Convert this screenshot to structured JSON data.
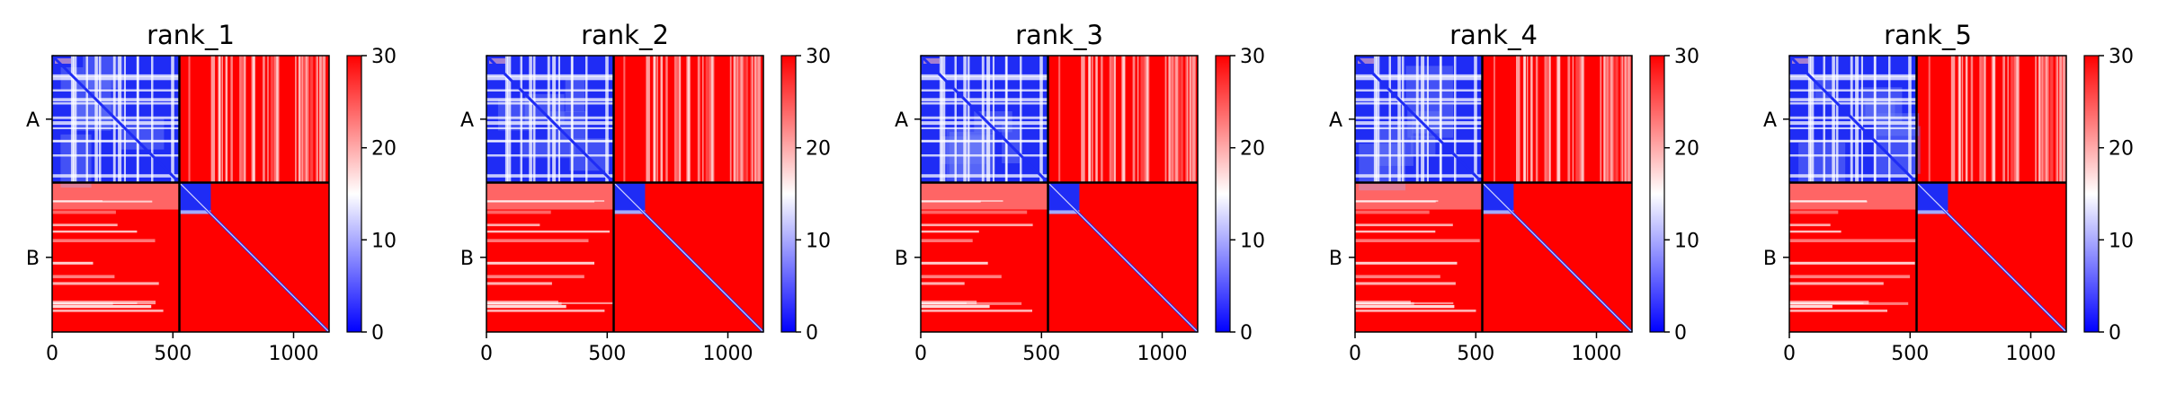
{
  "chart_data": {
    "type": "heatmap",
    "colorscale": {
      "min": 0,
      "mid": 15,
      "max": 30,
      "colors": [
        "#0000ff",
        "#ffffff",
        "#ff0000"
      ]
    },
    "colorbar_ticks": [
      "0",
      "10",
      "20",
      "30"
    ],
    "x_ticks": [
      {
        "value": 0,
        "label": "0"
      },
      {
        "value": 500,
        "label": "500"
      },
      {
        "value": 1000,
        "label": "1000"
      }
    ],
    "x_range": [
      0,
      1147
    ],
    "chain_boundary": 527,
    "chains": [
      {
        "label": "A",
        "start": 0,
        "end": 527
      },
      {
        "label": "B",
        "start": 527,
        "end": 1147
      }
    ],
    "panels": [
      {
        "title": "rank_1"
      },
      {
        "title": "rank_2"
      },
      {
        "title": "rank_3"
      },
      {
        "title": "rank_4"
      },
      {
        "title": "rank_5"
      }
    ]
  }
}
